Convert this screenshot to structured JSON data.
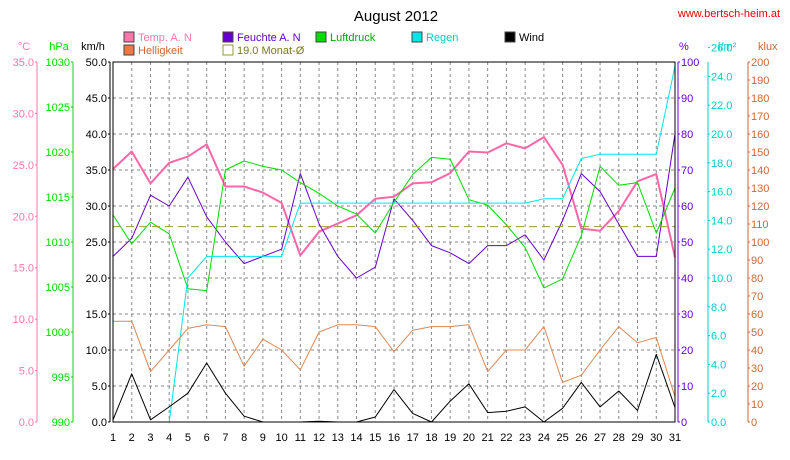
{
  "chart_data": {
    "type": "line",
    "title": "August 2012",
    "source": "www.bertsch-heim.at",
    "days": [
      1,
      2,
      3,
      4,
      5,
      6,
      7,
      8,
      9,
      10,
      11,
      12,
      13,
      14,
      15,
      16,
      17,
      18,
      19,
      20,
      21,
      22,
      23,
      24,
      25,
      26,
      27,
      28,
      29,
      30,
      31
    ],
    "axes": [
      {
        "unit": "°C",
        "min": 0,
        "max": 35,
        "step": 5,
        "format": 1,
        "side": "left",
        "color": "#ff77aa"
      },
      {
        "unit": "hPa",
        "min": 990,
        "max": 1030,
        "step": 5,
        "format": 0,
        "side": "left",
        "color": "#00dd00"
      },
      {
        "unit": "km/h",
        "min": 0,
        "max": 50,
        "step": 5,
        "format": 1,
        "side": "left",
        "color": "#000000"
      },
      {
        "unit": "%",
        "min": 0,
        "max": 100,
        "step": 10,
        "format": 0,
        "side": "right",
        "color": "#6600cc"
      },
      {
        "unit": "l/m²",
        "min": 0,
        "max": 25,
        "step": 2,
        "format": 1,
        "side": "right",
        "color": "#00cccc"
      },
      {
        "unit": "klux",
        "min": 0,
        "max": 200,
        "step": 10,
        "format": 0,
        "side": "right",
        "color": "#cc6633"
      }
    ],
    "series": [
      {
        "name": "Temp. A. N",
        "axis": 0,
        "color": "#ff66a8",
        "width": 2,
        "values": [
          24.6,
          26.3,
          23.2,
          25.2,
          25.8,
          27.0,
          22.9,
          22.9,
          22.3,
          21.3,
          16.2,
          18.5,
          19.3,
          20.1,
          21.7,
          21.9,
          23.2,
          23.3,
          24.2,
          26.3,
          26.2,
          27.1,
          26.6,
          27.7,
          25.0,
          18.8,
          18.6,
          20.5,
          23.4,
          24.1,
          16.0
        ]
      },
      {
        "name": "Feuchte A. N",
        "axis": 3,
        "color": "#6600cc",
        "width": 1,
        "values": [
          46,
          51,
          63,
          60,
          68,
          57,
          50,
          44,
          46,
          48,
          69,
          55,
          46,
          40,
          43,
          62,
          56,
          49,
          47,
          44,
          49,
          49,
          52,
          45,
          56,
          69,
          64,
          55,
          46,
          46,
          80
        ]
      },
      {
        "name": "Luftdruck",
        "axis": 1,
        "color": "#00dd00",
        "width": 1,
        "values": [
          1013.0,
          1009.8,
          1012.2,
          1010.9,
          1004.8,
          1004.6,
          1018.0,
          1019.0,
          1018.4,
          1018.0,
          1016.6,
          1015.4,
          1014.0,
          1013.1,
          1011.0,
          1014.4,
          1017.5,
          1019.4,
          1019.2,
          1014.7,
          1014.1,
          1011.9,
          1009.4,
          1004.9,
          1005.9,
          1010.7,
          1018.4,
          1016.3,
          1016.6,
          1011.0,
          1016.0
        ]
      },
      {
        "name": "Regen",
        "axis": 4,
        "color": "#00e6e6",
        "width": 1,
        "values": [
          0,
          0,
          0,
          0,
          10.0,
          11.5,
          11.5,
          11.5,
          11.5,
          11.5,
          15.2,
          15.2,
          15.2,
          15.2,
          15.2,
          15.2,
          15.2,
          15.2,
          15.2,
          15.2,
          15.2,
          15.2,
          15.2,
          15.5,
          15.5,
          18.3,
          18.6,
          18.6,
          18.6,
          18.6,
          24.7
        ]
      },
      {
        "name": "Helligkeit",
        "axis": 5,
        "color": "#dd8855",
        "width": 1,
        "values": [
          56,
          56,
          28,
          40,
          52,
          54,
          53,
          31,
          46,
          40,
          29,
          50,
          54,
          54,
          53,
          39,
          51,
          53,
          53,
          54,
          28,
          40,
          40,
          53,
          22,
          26,
          40,
          53,
          44,
          47,
          14
        ]
      },
      {
        "name": "Wind",
        "axis": 2,
        "color": "#000000",
        "width": 1,
        "values": [
          0.3,
          6.7,
          0.3,
          2.1,
          4.0,
          8.2,
          4.0,
          0.8,
          0,
          0,
          0,
          0.1,
          0,
          0,
          0.7,
          4.5,
          1.2,
          0,
          2.9,
          5.3,
          1.3,
          1.5,
          2.1,
          0,
          1.9,
          5.5,
          2.1,
          4.3,
          1.6,
          9.4,
          2.0
        ]
      },
      {
        "name": "19.0 Monat-Ø",
        "axis": 0,
        "color": "#999933",
        "width": 1,
        "dashed": true,
        "values": [
          19.0,
          19.0,
          19.0,
          19.0,
          19.0,
          19.0,
          19.0,
          19.0,
          19.0,
          19.0,
          19.0,
          19.0,
          19.0,
          19.0,
          19.0,
          19.0,
          19.0,
          19.0,
          19.0,
          19.0,
          19.0,
          19.0,
          19.0,
          19.0,
          19.0,
          19.0,
          19.0,
          19.0,
          19.0,
          19.0,
          19.0
        ]
      }
    ],
    "legend": [
      {
        "label": "Temp. A. N",
        "color": "#ff77aa",
        "text_color": "#ff77aa",
        "row": 0,
        "col": 0
      },
      {
        "label": "Feuchte A. N",
        "color": "#6600cc",
        "text_color": "#6600cc",
        "row": 0,
        "col": 1
      },
      {
        "label": "Luftdruck",
        "color": "#00dd00",
        "text_color": "#00aa00",
        "row": 0,
        "col": 2
      },
      {
        "label": "Regen",
        "color": "#00e6e6",
        "text_color": "#00cccc",
        "row": 0,
        "col": 3
      },
      {
        "label": "Wind",
        "color": "#000000",
        "text_color": "#000000",
        "row": 0,
        "col": 4
      },
      {
        "label": "Helligkeit",
        "color": "#ee7744",
        "text_color": "#cc6633",
        "row": 1,
        "col": 0
      },
      {
        "label": "19.0 Monat-Ø",
        "color": "#ffffff",
        "text_color": "#777722",
        "border": "#999933",
        "row": 1,
        "col": 1
      }
    ],
    "grid": true,
    "legend_position": "top"
  }
}
